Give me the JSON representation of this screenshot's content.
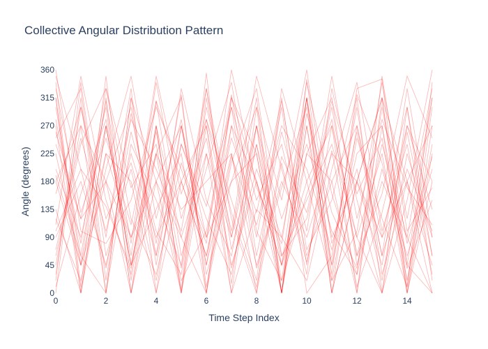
{
  "chart_data": {
    "type": "line",
    "title": "Collective Angular Distribution Pattern",
    "xlabel": "Time Step Index",
    "ylabel": "Angle (degrees)",
    "xlim": [
      0,
      15
    ],
    "ylim": [
      0,
      360
    ],
    "x_ticks": [
      0,
      2,
      4,
      6,
      8,
      10,
      12,
      14
    ],
    "y_ticks": [
      0,
      45,
      90,
      135,
      180,
      225,
      270,
      315,
      360
    ],
    "grid": false,
    "legend": "none",
    "line_color": "#ff0000",
    "x": [
      0,
      1,
      2,
      3,
      4,
      5,
      6,
      7,
      8,
      9,
      10,
      11,
      12,
      13,
      14,
      15
    ],
    "series": [
      {
        "values": [
          315,
          0,
          270,
          45,
          225,
          0,
          270,
          45,
          180,
          0,
          315,
          90,
          180,
          315,
          45,
          315
        ]
      },
      {
        "values": [
          180,
          45,
          180,
          0,
          270,
          90,
          225,
          0,
          270,
          45,
          315,
          45,
          225,
          270,
          0,
          180
        ]
      },
      {
        "values": [
          270,
          0,
          225,
          90,
          180,
          270,
          45,
          315,
          225,
          0,
          270,
          0,
          180,
          315,
          180,
          0
        ]
      },
      {
        "values": [
          225,
          45,
          315,
          0,
          225,
          315,
          0,
          270,
          180,
          45,
          180,
          270,
          90,
          225,
          0,
          270
        ]
      },
      {
        "values": [
          0,
          315,
          0,
          315,
          45,
          270,
          90,
          180,
          225,
          0,
          225,
          315,
          45,
          180,
          90,
          315
        ]
      },
      {
        "values": [
          135,
          0,
          270,
          45,
          270,
          0,
          315,
          90,
          270,
          0,
          315,
          0,
          270,
          90,
          180,
          45
        ]
      },
      {
        "values": [
          315,
          45,
          225,
          180,
          0,
          270,
          45,
          225,
          0,
          315,
          45,
          270,
          0,
          315,
          0,
          225
        ]
      },
      {
        "values": [
          45,
          270,
          0,
          315,
          180,
          0,
          225,
          90,
          315,
          0,
          270,
          45,
          315,
          0,
          225,
          90
        ]
      },
      {
        "values": [
          200,
          90,
          270,
          45,
          135,
          225,
          0,
          315,
          180,
          45,
          225,
          180,
          0,
          270,
          45,
          0
        ]
      },
      {
        "values": [
          340,
          10,
          350,
          20,
          270,
          5,
          355,
          15,
          300,
          0,
          345,
          30,
          330,
          345,
          10,
          340
        ]
      },
      {
        "values": [
          90,
          180,
          45,
          225,
          90,
          180,
          270,
          0,
          135,
          90,
          315,
          0,
          180,
          45,
          270,
          135
        ]
      },
      {
        "values": [
          260,
          120,
          180,
          300,
          60,
          240,
          120,
          30,
          240,
          60,
          120,
          300,
          60,
          240,
          90,
          0
        ]
      },
      {
        "values": [
          30,
          300,
          90,
          330,
          0,
          180,
          60,
          270,
          90,
          300,
          0,
          60,
          300,
          30,
          180,
          270
        ]
      },
      {
        "values": [
          180,
          270,
          180,
          90,
          225,
          135,
          180,
          225,
          45,
          180,
          90,
          225,
          180,
          90,
          270,
          180
        ]
      },
      {
        "values": [
          300,
          60,
          0,
          240,
          150,
          45,
          330,
          120,
          0,
          210,
          30,
          330,
          150,
          0,
          300,
          60
        ]
      },
      {
        "values": [
          110,
          350,
          150,
          30,
          310,
          60,
          200,
          340,
          100,
          20,
          290,
          130,
          40,
          300,
          80,
          220
        ]
      },
      {
        "values": [
          60,
          240,
          330,
          120,
          30,
          210,
          90,
          300,
          150,
          240,
          60,
          180,
          270,
          60,
          330,
          90
        ]
      },
      {
        "values": [
          350,
          200,
          40,
          260,
          100,
          30,
          280,
          150,
          20,
          330,
          180,
          20,
          250,
          120,
          10,
          300
        ]
      },
      {
        "values": [
          240,
          120,
          300,
          0,
          180,
          90,
          0,
          210,
          330,
          60,
          150,
          240,
          90,
          0,
          150,
          360
        ]
      },
      {
        "values": [
          10,
          160,
          280,
          60,
          340,
          120,
          250,
          40,
          200,
          90,
          20,
          200,
          340,
          100,
          240,
          30
        ]
      },
      {
        "values": [
          160,
          300,
          120,
          210,
          60,
          330,
          150,
          60,
          270,
          120,
          240,
          100,
          30,
          200,
          60,
          200
        ]
      },
      {
        "values": [
          280,
          80,
          330,
          170,
          240,
          20,
          100,
          320,
          60,
          260,
          100,
          350,
          120,
          280,
          170,
          110
        ]
      },
      {
        "values": [
          120,
          20,
          200,
          350,
          120,
          280,
          30,
          180,
          300,
          150,
          360,
          80,
          200,
          20,
          260,
          60
        ]
      },
      {
        "values": [
          70,
          250,
          100,
          280,
          200,
          100,
          330,
          70,
          240,
          20,
          160,
          280,
          60,
          160,
          350,
          250
        ]
      },
      {
        "values": [
          330,
          130,
          250,
          110,
          310,
          180,
          60,
          250,
          130,
          310,
          70,
          150,
          320,
          210,
          40,
          150
        ]
      },
      {
        "values": [
          20,
          340,
          60,
          200,
          20,
          240,
          140,
          300,
          40,
          170,
          300,
          20,
          100,
          340,
          120,
          330
        ]
      },
      {
        "values": [
          190,
          60,
          310,
          80,
          350,
          160,
          280,
          100,
          350,
          200,
          50,
          230,
          10,
          130,
          300,
          20
        ]
      },
      {
        "values": [
          250,
          330,
          20,
          290,
          80,
          320,
          10,
          220,
          110,
          270,
          200,
          70,
          260,
          60,
          200,
          100
        ]
      },
      {
        "values": [
          100,
          200,
          140,
          40,
          260,
          40,
          300,
          130,
          10,
          220,
          130,
          310,
          160,
          250,
          20,
          240
        ]
      },
      {
        "values": [
          360,
          100,
          80,
          150,
          300,
          200,
          80,
          360,
          170,
          80,
          340,
          160,
          30,
          350,
          100,
          170
        ]
      }
    ]
  }
}
